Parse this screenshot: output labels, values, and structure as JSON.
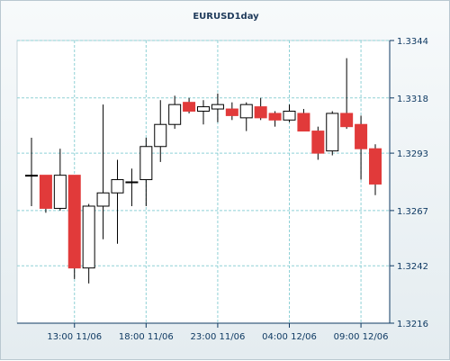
{
  "chart_data": {
    "type": "candlestick",
    "title": "EURUSD1day",
    "xlabel": "",
    "ylabel": "",
    "ylim": [
      1.3216,
      1.3344
    ],
    "yticks": [
      "1.3344",
      "1.3318",
      "1.3293",
      "1.3267",
      "1.3242",
      "1.3216"
    ],
    "x_tick_labels": [
      "13:00 11/06",
      "18:00 11/06",
      "23:00 11/06",
      "04:00 12/06",
      "09:00 12/06"
    ],
    "grid": true,
    "colors": {
      "up": "#ffffff",
      "down": "#e13a3a",
      "grid": "#8fd1d6",
      "axis": "#0f3a63",
      "wick": "#000000"
    },
    "candles": [
      {
        "o": 1.3283,
        "h": 1.33,
        "l": 1.3269,
        "c": 1.3283
      },
      {
        "o": 1.3283,
        "h": 1.3283,
        "l": 1.3266,
        "c": 1.3268
      },
      {
        "o": 1.3268,
        "h": 1.3295,
        "l": 1.3267,
        "c": 1.3283
      },
      {
        "o": 1.3283,
        "h": 1.3283,
        "l": 1.3236,
        "c": 1.3241
      },
      {
        "o": 1.3241,
        "h": 1.327,
        "l": 1.3234,
        "c": 1.3269
      },
      {
        "o": 1.3269,
        "h": 1.3315,
        "l": 1.3254,
        "c": 1.3275
      },
      {
        "o": 1.3275,
        "h": 1.329,
        "l": 1.3252,
        "c": 1.3281
      },
      {
        "o": 1.328,
        "h": 1.3286,
        "l": 1.3269,
        "c": 1.328
      },
      {
        "o": 1.3281,
        "h": 1.33,
        "l": 1.3269,
        "c": 1.3296
      },
      {
        "o": 1.3296,
        "h": 1.3317,
        "l": 1.3289,
        "c": 1.3306
      },
      {
        "o": 1.3306,
        "h": 1.3319,
        "l": 1.3304,
        "c": 1.3315
      },
      {
        "o": 1.3316,
        "h": 1.3318,
        "l": 1.3311,
        "c": 1.3312
      },
      {
        "o": 1.3312,
        "h": 1.3317,
        "l": 1.3306,
        "c": 1.3314
      },
      {
        "o": 1.3313,
        "h": 1.332,
        "l": 1.3307,
        "c": 1.3315
      },
      {
        "o": 1.3313,
        "h": 1.3316,
        "l": 1.3308,
        "c": 1.331
      },
      {
        "o": 1.3309,
        "h": 1.3316,
        "l": 1.3303,
        "c": 1.3315
      },
      {
        "o": 1.3314,
        "h": 1.3318,
        "l": 1.3308,
        "c": 1.3309
      },
      {
        "o": 1.3311,
        "h": 1.3312,
        "l": 1.3305,
        "c": 1.3308
      },
      {
        "o": 1.3308,
        "h": 1.3315,
        "l": 1.3307,
        "c": 1.3312
      },
      {
        "o": 1.3311,
        "h": 1.3313,
        "l": 1.3303,
        "c": 1.3303
      },
      {
        "o": 1.3303,
        "h": 1.3305,
        "l": 1.329,
        "c": 1.3293
      },
      {
        "o": 1.3294,
        "h": 1.3312,
        "l": 1.3292,
        "c": 1.3311
      },
      {
        "o": 1.3311,
        "h": 1.3336,
        "l": 1.3304,
        "c": 1.3305
      },
      {
        "o": 1.3306,
        "h": 1.331,
        "l": 1.3281,
        "c": 1.3295
      },
      {
        "o": 1.3295,
        "h": 1.3297,
        "l": 1.3274,
        "c": 1.3279
      }
    ]
  }
}
